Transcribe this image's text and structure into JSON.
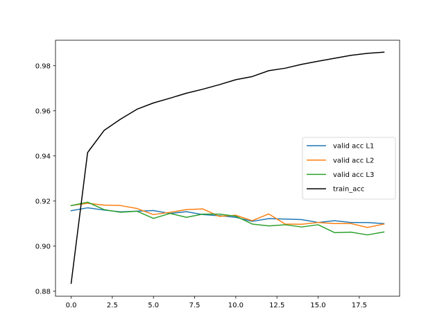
{
  "chart_data": {
    "type": "line",
    "x": [
      0,
      1,
      2,
      3,
      4,
      5,
      6,
      7,
      8,
      9,
      10,
      11,
      12,
      13,
      14,
      15,
      16,
      17,
      18,
      19
    ],
    "xlim": [
      -0.95,
      19.95
    ],
    "ylim": [
      0.8778,
      0.9913
    ],
    "x_ticks": [
      0,
      2.5,
      5,
      7.5,
      10,
      12.5,
      15,
      17.5
    ],
    "x_tick_labels": [
      "0.0",
      "2.5",
      "5.0",
      "7.5",
      "10.0",
      "12.5",
      "15.0",
      "17.5"
    ],
    "y_ticks": [
      0.88,
      0.9,
      0.92,
      0.94,
      0.96,
      0.98
    ],
    "y_tick_labels": [
      "0.88",
      "0.90",
      "0.92",
      "0.94",
      "0.96",
      "0.98"
    ],
    "grid": false,
    "legend_position": "center-right",
    "series": [
      {
        "name": "valid acc L1",
        "color": "#1f77b4",
        "values": [
          0.9157,
          0.917,
          0.916,
          0.9152,
          0.9155,
          0.9158,
          0.9145,
          0.9153,
          0.914,
          0.9135,
          0.9128,
          0.911,
          0.9122,
          0.912,
          0.9118,
          0.9105,
          0.9113,
          0.9105,
          0.9105,
          0.91
        ]
      },
      {
        "name": "valid acc L2",
        "color": "#ff7f0e",
        "values": [
          0.918,
          0.919,
          0.9182,
          0.918,
          0.9167,
          0.914,
          0.915,
          0.9162,
          0.9165,
          0.9132,
          0.9137,
          0.9113,
          0.9143,
          0.9098,
          0.9097,
          0.9105,
          0.91,
          0.91,
          0.9083,
          0.9098
        ]
      },
      {
        "name": "valid acc L3",
        "color": "#2ca02c",
        "values": [
          0.918,
          0.9195,
          0.9162,
          0.915,
          0.9155,
          0.9123,
          0.9145,
          0.9128,
          0.9142,
          0.9142,
          0.9133,
          0.9098,
          0.909,
          0.9095,
          0.9085,
          0.9095,
          0.906,
          0.9062,
          0.905,
          0.9063
        ]
      },
      {
        "name": "train_acc",
        "color": "#000000",
        "values": [
          0.8835,
          0.9415,
          0.9513,
          0.9563,
          0.9607,
          0.9635,
          0.9656,
          0.9678,
          0.9696,
          0.9716,
          0.9738,
          0.9752,
          0.9778,
          0.9789,
          0.9806,
          0.982,
          0.9833,
          0.9846,
          0.9855,
          0.986
        ]
      }
    ]
  }
}
